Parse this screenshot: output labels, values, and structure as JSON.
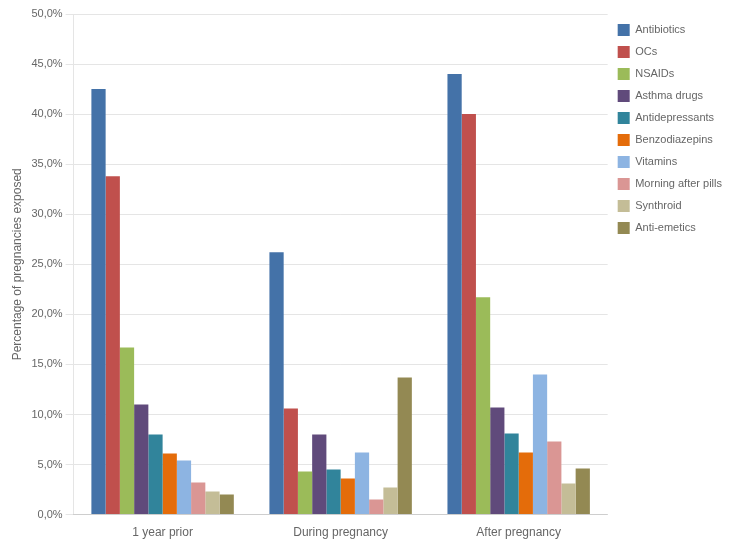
{
  "chart_data": {
    "type": "bar",
    "categories": [
      "1 year prior",
      "During pregnancy",
      "After pregnancy"
    ],
    "series": [
      {
        "name": "Antibiotics",
        "color": "#4472a8",
        "values": [
          42.5,
          26.2,
          44.0
        ]
      },
      {
        "name": "OCs",
        "color": "#c0504d",
        "values": [
          33.8,
          10.6,
          40.0
        ]
      },
      {
        "name": "NSAIDs",
        "color": "#9bbb59",
        "values": [
          16.7,
          4.3,
          21.7
        ]
      },
      {
        "name": "Asthma drugs",
        "color": "#604a7b",
        "values": [
          11.0,
          8.0,
          10.7
        ]
      },
      {
        "name": "Antidepressants",
        "color": "#31849b",
        "values": [
          8.0,
          4.5,
          8.1
        ]
      },
      {
        "name": "Benzodiazepins",
        "color": "#e46c0a",
        "values": [
          6.1,
          3.6,
          6.2
        ]
      },
      {
        "name": "Vitamins",
        "color": "#8db4e2",
        "values": [
          5.4,
          6.2,
          14.0
        ]
      },
      {
        "name": "Morning after pills",
        "color": "#da9694",
        "values": [
          3.2,
          1.5,
          7.3
        ]
      },
      {
        "name": "Synthroid",
        "color": "#c4bd97",
        "values": [
          2.3,
          2.7,
          3.1
        ]
      },
      {
        "name": "Anti-emetics",
        "color": "#938953",
        "values": [
          2.0,
          13.7,
          4.6
        ]
      }
    ],
    "ylabel": "Percentage of pregnancies exposed",
    "ylim": [
      0,
      50
    ],
    "yticks": [
      {
        "value": 0,
        "label": "0,0%"
      },
      {
        "value": 5,
        "label": "5,0%"
      },
      {
        "value": 10,
        "label": "10,0%"
      },
      {
        "value": 15,
        "label": "15,0%"
      },
      {
        "value": 20,
        "label": "20,0%"
      },
      {
        "value": 25,
        "label": "25,0%"
      },
      {
        "value": 30,
        "label": "30,0%"
      },
      {
        "value": 35,
        "label": "35,0%"
      },
      {
        "value": 40,
        "label": "40,0%"
      },
      {
        "value": 45,
        "label": "45,0%"
      },
      {
        "value": 50,
        "label": "50,0%"
      }
    ],
    "grid": true,
    "legend": "right"
  }
}
